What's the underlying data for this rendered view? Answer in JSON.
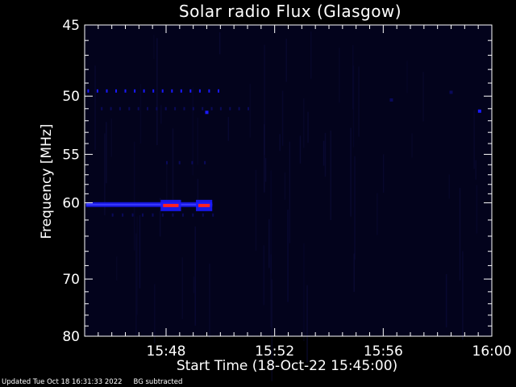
{
  "chart_data": {
    "type": "heatmap",
    "title": "Solar radio Flux (Glasgow)",
    "xlabel": "Start Time (18-Oct-22 15:45:00)",
    "ylabel": "Frequency [MHz]",
    "x_ticks": [
      "15:48",
      "15:52",
      "15:56",
      "16:00"
    ],
    "x_tick_minutes": [
      3,
      7,
      11,
      15
    ],
    "xlim_minutes": [
      0,
      15
    ],
    "y_ticks": [
      45,
      50,
      55,
      60,
      70,
      80
    ],
    "ylim": [
      45,
      80
    ],
    "colors": {
      "background": "#000000",
      "plot_bg": "#03031c",
      "low": "#0a0a5a",
      "mid": "#1a1aff",
      "high": "#ff2020"
    },
    "features": [
      {
        "kind": "band",
        "freq": 60.2,
        "t_start": 0.05,
        "t_end": 4.7,
        "intensity": "mid"
      },
      {
        "kind": "burst",
        "freq": 60.3,
        "t_start": 2.8,
        "t_end": 3.55,
        "intensity": "high"
      },
      {
        "kind": "burst",
        "freq": 60.3,
        "t_start": 4.1,
        "t_end": 4.7,
        "intensity": "high"
      },
      {
        "kind": "dotted",
        "freq": 49.6,
        "t_start": 0.1,
        "t_end": 4.9,
        "intensity": "mid"
      },
      {
        "kind": "dotted",
        "freq": 51.0,
        "t_start": 0.6,
        "t_end": 6.0,
        "intensity": "low"
      },
      {
        "kind": "dot",
        "freq": 51.3,
        "t": 4.5,
        "intensity": "mid"
      },
      {
        "kind": "dot",
        "freq": 51.2,
        "t": 14.55,
        "intensity": "mid"
      },
      {
        "kind": "dot",
        "freq": 49.7,
        "t": 13.5,
        "intensity": "low"
      },
      {
        "kind": "dot",
        "freq": 50.3,
        "t": 11.3,
        "intensity": "low"
      },
      {
        "kind": "dotted",
        "freq": 61.4,
        "t_start": 1.0,
        "t_end": 4.7,
        "intensity": "low"
      },
      {
        "kind": "dotted",
        "freq": 55.8,
        "t_start": 3.0,
        "t_end": 4.4,
        "intensity": "low"
      }
    ]
  },
  "footer": {
    "updated": "Updated Tue Oct 18 16:31:33 2022",
    "note": "BG subtracted"
  }
}
